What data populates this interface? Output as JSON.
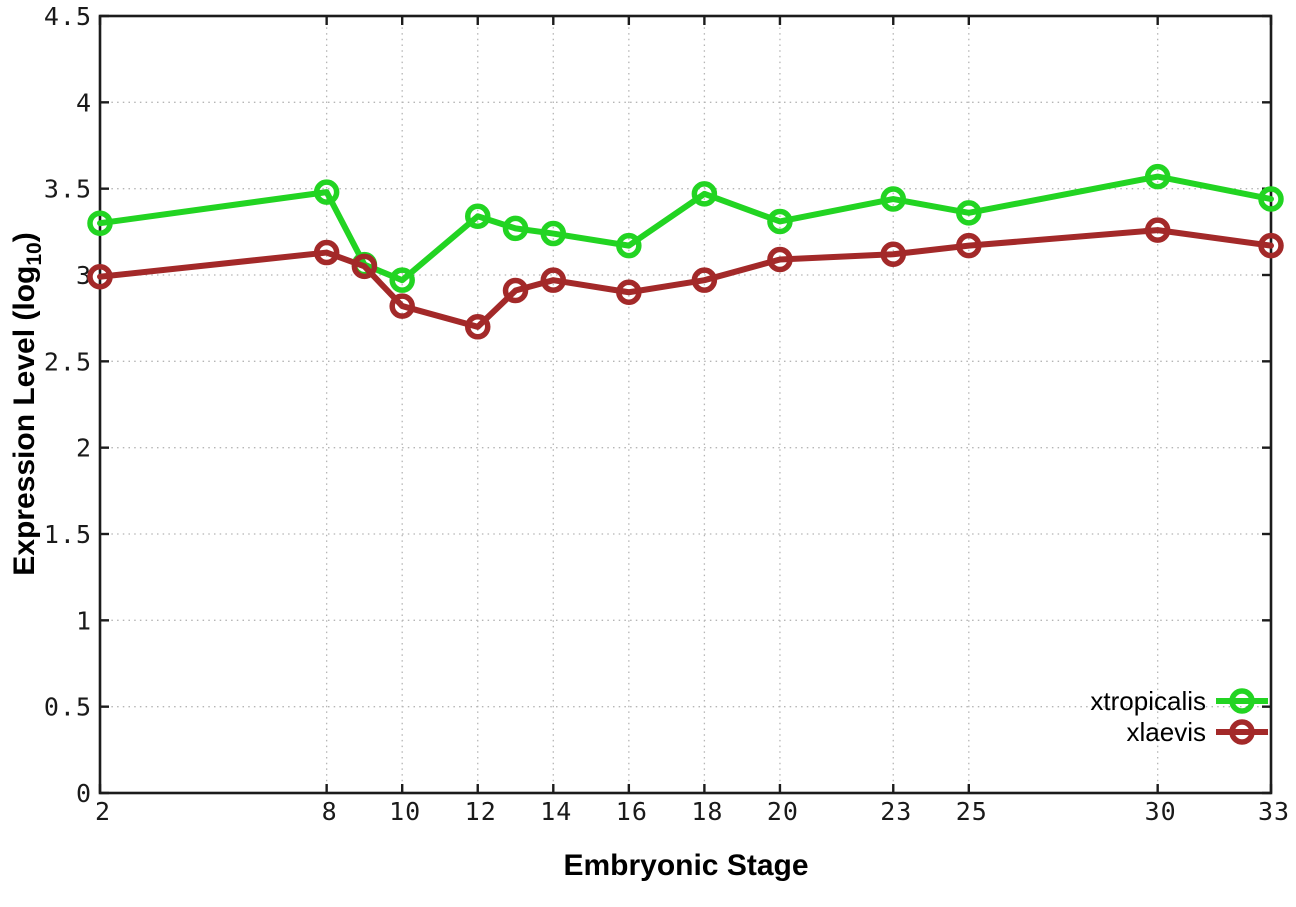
{
  "chart_data": {
    "type": "line",
    "title": "",
    "xlabel": "Embryonic Stage",
    "ylabel": "Expression Level (log10)",
    "ylabel_parts": {
      "main": "Expression Level (log",
      "sub": "10",
      "close": ")"
    },
    "x": [
      2,
      8,
      9,
      10,
      12,
      13,
      14,
      16,
      18,
      20,
      23,
      25,
      30,
      33
    ],
    "xticks": [
      "2",
      "8",
      "10",
      "12",
      "14",
      "16",
      "18",
      "20",
      "23",
      "25",
      "30",
      "33"
    ],
    "yticks": [
      "0",
      "0.5",
      "1",
      "1.5",
      "2",
      "2.5",
      "3",
      "3.5",
      "4",
      "4.5"
    ],
    "xlim": [
      2,
      33
    ],
    "ylim": [
      0,
      4.5
    ],
    "grid": "dotted both axes",
    "legend_position": "inside bottom-right",
    "marker_style": "open-circle",
    "series": [
      {
        "name": "xtropicalis",
        "color": "#22d422",
        "values": [
          3.3,
          3.48,
          3.06,
          2.97,
          3.34,
          3.27,
          3.24,
          3.17,
          3.47,
          3.31,
          3.44,
          3.36,
          3.57,
          3.44
        ]
      },
      {
        "name": "xlaevis",
        "color": "#a32929",
        "values": [
          2.99,
          3.13,
          3.05,
          2.82,
          2.7,
          2.91,
          2.97,
          2.9,
          2.97,
          3.09,
          3.12,
          3.17,
          3.26,
          3.17
        ]
      }
    ],
    "colors": {
      "grid": "#b5b5b5",
      "axis": "#1c1c1c",
      "background": "#ffffff",
      "tick_text": "#1a1a1a"
    }
  }
}
